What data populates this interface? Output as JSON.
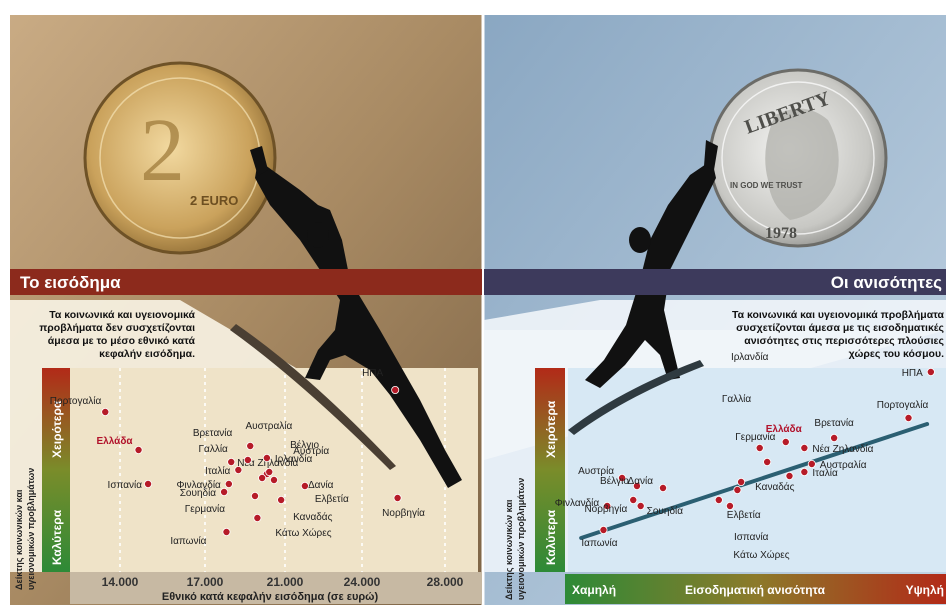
{
  "left_panel": {
    "banner_title": "Το εισόδημα",
    "description": [
      "Τα κοινωνικά και υγειονομικά",
      "προβλήματα δεν συσχετίζονται",
      "άμεσα με το μέσο εθνικό κατά",
      "κεφαλήν εισόδημα."
    ],
    "y_top_label": "Χειρότερα",
    "y_bottom_label": "Καλύτερα",
    "y_axis_name": [
      "Δείκτης κοινωνικών και",
      "υγειονομικών προβλημάτων"
    ],
    "coin_label": "2 EURO",
    "colors": {
      "banner": "#8c2a1c",
      "background": "#b79a74",
      "plot": "#efe3c8",
      "point": "#b61b28",
      "highlight": "#b1122b"
    }
  },
  "right_panel": {
    "banner_title": "Οι ανισότητες",
    "description": [
      "Τα κοινωνικά και υγειονομικά προβλήματα",
      "συσχετίζονται άμεσα με τις εισοδηματικές",
      "ανισότητες στις περισσότερες πλούσιες",
      "χώρες του κόσμου."
    ],
    "y_top_label": "Χειρότερα",
    "y_bottom_label": "Καλύτερα",
    "y_axis_name": [
      "Δείκτης κοινωνικών και",
      "υγειονομικών προβλημάτων"
    ],
    "x_low_label": "Χαμηλή",
    "x_high_label": "Υψηλή",
    "coin_label": "LIBERTY",
    "coin_motto": "IN GOD WE TRUST",
    "coin_year": "1978",
    "colors": {
      "banner": "#3d3a5c",
      "background": "#9db4cc",
      "plot": "#d7e8f4",
      "trend": "#2b5f72",
      "point": "#b61b28"
    }
  },
  "chart_data": [
    {
      "type": "scatter",
      "title": "Το εισόδημα",
      "xlabel": "Εθνικό κατά κεφαλήν εισόδημα (σε ευρώ)",
      "ylabel": "Δείκτης κοινωνικών και υγειονομικών προβλημάτων",
      "x_ticks": [
        "14.000",
        "17.000",
        "21.000",
        "24.000",
        "28.000"
      ],
      "xlim": [
        12500,
        29500
      ],
      "ylim": [
        0,
        10
      ],
      "highlight": "Ελλάδα",
      "points": [
        {
          "label": "ΗΠΑ",
          "x": 26100,
          "y": 9.0
        },
        {
          "label": "Πορτογαλία",
          "x": 13900,
          "y": 7.9
        },
        {
          "label": "Βρετανία",
          "x": 20000,
          "y": 6.2
        },
        {
          "label": "Ελλάδα",
          "x": 15300,
          "y": 6.0
        },
        {
          "label": "Νέα Ζηλανδία",
          "x": 19200,
          "y": 5.4
        },
        {
          "label": "Ιρλανδία",
          "x": 20700,
          "y": 5.6
        },
        {
          "label": "Γαλλία",
          "x": 19900,
          "y": 5.5
        },
        {
          "label": "Ιταλία",
          "x": 19500,
          "y": 5.0
        },
        {
          "label": "Αυστραλία",
          "x": 20700,
          "y": 4.8
        },
        {
          "label": "Βέλγιο",
          "x": 20500,
          "y": 4.6
        },
        {
          "label": "Αυστρία",
          "x": 20800,
          "y": 4.9
        },
        {
          "label": "Δανία",
          "x": 21000,
          "y": 4.5
        },
        {
          "label": "Ισπανία",
          "x": 15700,
          "y": 4.3
        },
        {
          "label": "Φινλανδία",
          "x": 19100,
          "y": 4.3
        },
        {
          "label": "Καναδάς",
          "x": 21300,
          "y": 3.5
        },
        {
          "label": "Ελβετία",
          "x": 22300,
          "y": 4.2
        },
        {
          "label": "Σουηδία",
          "x": 18900,
          "y": 3.9
        },
        {
          "label": "Γερμανία",
          "x": 20200,
          "y": 3.7
        },
        {
          "label": "Νορβηγία",
          "x": 26200,
          "y": 3.6
        },
        {
          "label": "Κάτω Χώρες",
          "x": 20300,
          "y": 2.6
        },
        {
          "label": "Ιαπωνία",
          "x": 19000,
          "y": 1.9
        }
      ]
    },
    {
      "type": "scatter",
      "title": "Οι ανισότητες",
      "xlabel": "Εισοδηματική ανισότητα",
      "ylabel": "Δείκτης κοινωνικών και υγειονομικών προβλημάτων",
      "xlim": [
        0,
        10
      ],
      "ylim": [
        0,
        10
      ],
      "trend_line": [
        [
          0.3,
          1.6
        ],
        [
          9.6,
          7.3
        ]
      ],
      "highlight": "Ελλάδα",
      "points": [
        {
          "label": "ΗΠΑ",
          "x": 9.7,
          "y": 9.9
        },
        {
          "label": "Πορτογαλία",
          "x": 9.1,
          "y": 7.6
        },
        {
          "label": "Βρετανία",
          "x": 7.1,
          "y": 6.6
        },
        {
          "label": "Ελλάδα",
          "x": 5.8,
          "y": 6.4
        },
        {
          "label": "Νέα Ζηλανδία",
          "x": 6.3,
          "y": 6.1
        },
        {
          "label": "Αυστραλία",
          "x": 6.5,
          "y": 5.3
        },
        {
          "label": "Ιταλία",
          "x": 6.3,
          "y": 4.9
        },
        {
          "label": "Ιρλανδία",
          "x": 5.1,
          "y": 6.1
        },
        {
          "label": "Γαλλία",
          "x": 5.3,
          "y": 5.4
        },
        {
          "label": "Γερμανία",
          "x": 5.9,
          "y": 4.7
        },
        {
          "label": "Αυστρία",
          "x": 1.4,
          "y": 4.6
        },
        {
          "label": "Βέλγιο",
          "x": 1.8,
          "y": 4.2
        },
        {
          "label": "Δανία",
          "x": 2.5,
          "y": 4.1
        },
        {
          "label": "Καναδάς",
          "x": 4.6,
          "y": 4.4
        },
        {
          "label": "Ελβετία",
          "x": 4.0,
          "y": 3.5
        },
        {
          "label": "Φινλανδία",
          "x": 1.0,
          "y": 3.2
        },
        {
          "label": "Νορβηγία",
          "x": 1.7,
          "y": 3.5
        },
        {
          "label": "Σουηδία",
          "x": 1.9,
          "y": 3.2
        },
        {
          "label": "Ισπανία",
          "x": 4.3,
          "y": 3.2
        },
        {
          "label": "Κάτω Χώρες",
          "x": 4.5,
          "y": 4.0
        },
        {
          "label": "Ιαπωνία",
          "x": 0.9,
          "y": 2.0
        }
      ]
    }
  ]
}
